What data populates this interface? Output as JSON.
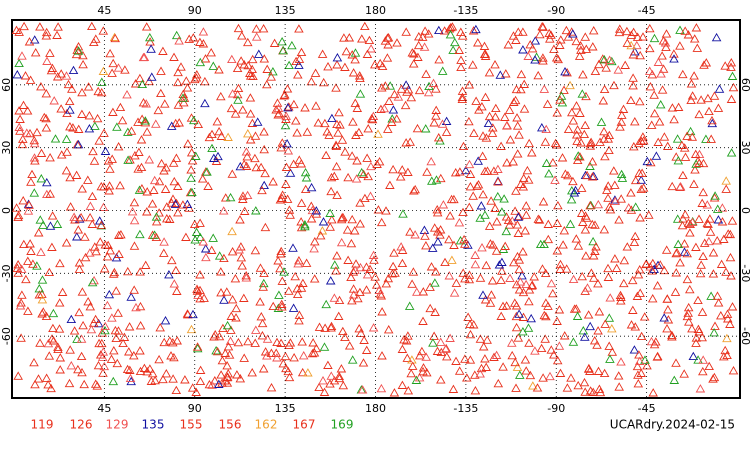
{
  "map": {
    "title": "UCARdry.2024-02-15",
    "lon_ticks": [
      {
        "value": 45,
        "label": "45"
      },
      {
        "value": 90,
        "label": "90"
      },
      {
        "value": 135,
        "label": "135"
      },
      {
        "value": 180,
        "label": "180"
      },
      {
        "value": -135,
        "label": "-135"
      },
      {
        "value": -90,
        "label": "-90"
      },
      {
        "value": -45,
        "label": "-45"
      }
    ],
    "lat_ticks": [
      60,
      30,
      0,
      -30,
      -60
    ],
    "legend": [
      {
        "name": "119",
        "color": "#e8301c"
      },
      {
        "name": "126",
        "color": "#e8301c"
      },
      {
        "name": "129",
        "color": "#f05050"
      },
      {
        "name": "135",
        "color": "#1010a0"
      },
      {
        "name": "155",
        "color": "#e8301c"
      },
      {
        "name": "156",
        "color": "#e8301c"
      },
      {
        "name": "162",
        "color": "#f0a030"
      },
      {
        "name": "167",
        "color": "#e8301c"
      },
      {
        "name": "169",
        "color": "#20a020"
      }
    ]
  }
}
